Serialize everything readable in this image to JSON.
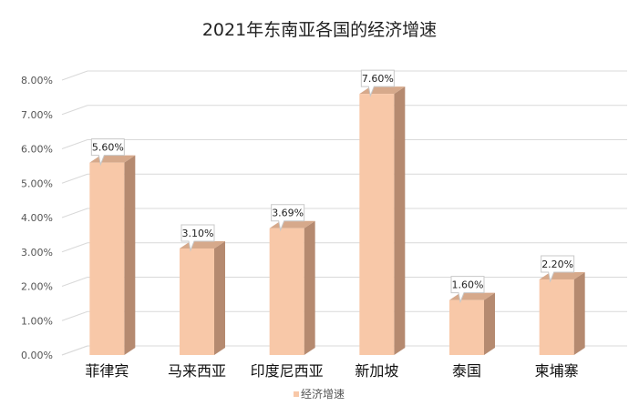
{
  "chart_data": {
    "type": "bar",
    "title": "2021年东南亚各国的经济增速",
    "categories": [
      "菲律宾",
      "马来西亚",
      "印度尼西亚",
      "新加坡",
      "泰国",
      "柬埔寨"
    ],
    "series": [
      {
        "name": "经济增速",
        "values": [
          5.6,
          3.1,
          3.69,
          7.6,
          1.6,
          2.2
        ],
        "labels": [
          "5.60%",
          "3.10%",
          "3.69%",
          "7.60%",
          "1.60%",
          "2.20%"
        ]
      }
    ],
    "yticks": [
      "0.00%",
      "1.00%",
      "2.00%",
      "3.00%",
      "4.00%",
      "5.00%",
      "6.00%",
      "7.00%",
      "8.00%"
    ],
    "ylim": [
      0,
      8
    ],
    "grid": true,
    "legend_position": "bottom",
    "colors": {
      "bar_front": "#f8c8a8",
      "bar_side": "#b58a70",
      "bar_top": "#d6a98b",
      "grid": "#d9d9d9"
    }
  }
}
